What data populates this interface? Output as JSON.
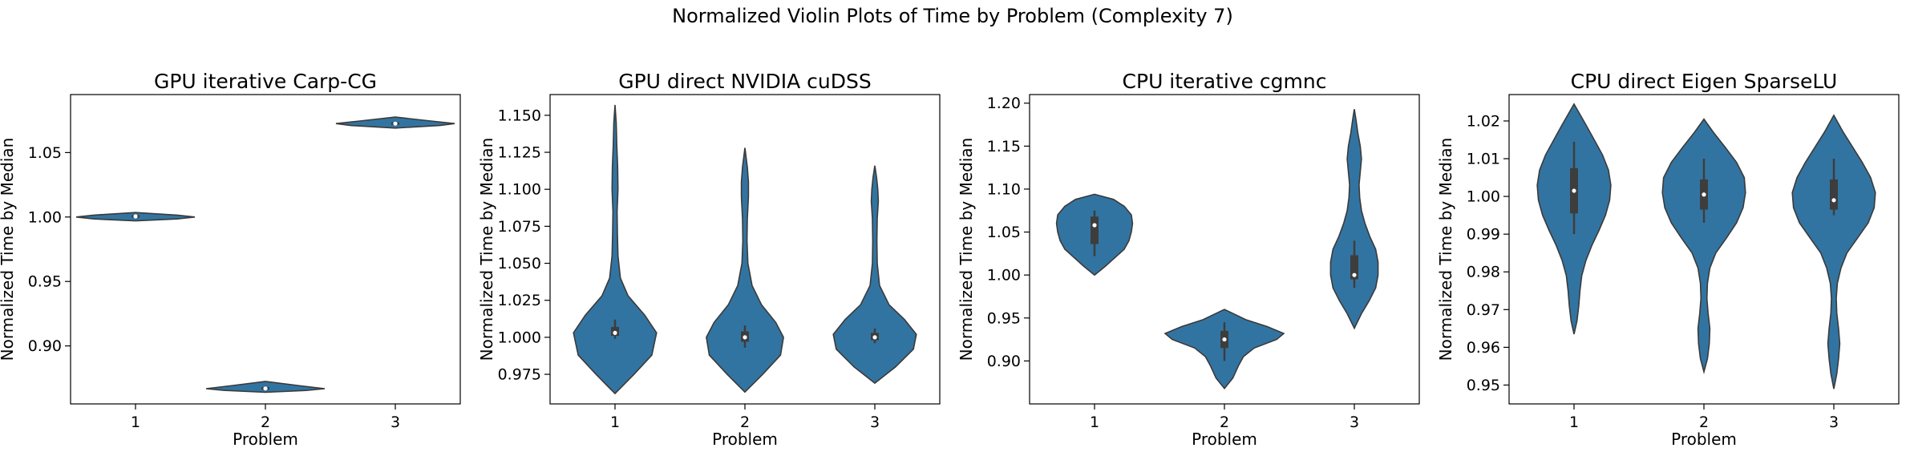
{
  "figure": {
    "title": "Normalized Violin Plots of Time by Problem (Complexity 7)",
    "violin_color": "#3274a1"
  },
  "chart_data": [
    {
      "type": "violin",
      "title": "GPU iterative Carp-CG",
      "xlabel": "Problem",
      "ylabel": "Normalized Time by Median",
      "categories": [
        "1",
        "2",
        "3"
      ],
      "ylim": [
        0.855,
        1.095
      ],
      "yticks": [
        0.9,
        0.95,
        1.0,
        1.05
      ],
      "ytick_labels": [
        "0.90",
        "0.95",
        "1.00",
        "1.05"
      ],
      "violins": [
        {
          "category": "1",
          "median": 1.0005,
          "q1": 0.9995,
          "q3": 1.0015,
          "whisker_low": 0.999,
          "whisker_high": 1.002,
          "profile": [
            [
              0.997,
              0
            ],
            [
              0.9985,
              0.7
            ],
            [
              1.0,
              1.0
            ],
            [
              1.0015,
              0.7
            ],
            [
              1.0035,
              0
            ]
          ]
        },
        {
          "category": "2",
          "median": 0.867,
          "q1": 0.8665,
          "q3": 0.868,
          "whisker_low": 0.866,
          "whisker_high": 0.869,
          "profile": [
            [
              0.864,
              0
            ],
            [
              0.8655,
              0.7
            ],
            [
              0.8668,
              1.0
            ],
            [
              0.869,
              0.6
            ],
            [
              0.8725,
              0
            ]
          ]
        },
        {
          "category": "3",
          "median": 1.0725,
          "q1": 1.0715,
          "q3": 1.0735,
          "whisker_low": 1.071,
          "whisker_high": 1.0745,
          "profile": [
            [
              1.069,
              0
            ],
            [
              1.071,
              0.75
            ],
            [
              1.0725,
              1.0
            ],
            [
              1.0745,
              0.6
            ],
            [
              1.0775,
              0
            ]
          ]
        }
      ]
    },
    {
      "type": "violin",
      "title": "GPU direct NVIDIA cuDSS",
      "xlabel": "Problem",
      "ylabel": "Normalized Time by Median",
      "categories": [
        "1",
        "2",
        "3"
      ],
      "ylim": [
        0.955,
        1.164
      ],
      "yticks": [
        0.975,
        1.0,
        1.025,
        1.05,
        1.075,
        1.1,
        1.125,
        1.15
      ],
      "ytick_labels": [
        "0.975",
        "1.000",
        "1.025",
        "1.050",
        "1.075",
        "1.100",
        "1.125",
        "1.150"
      ],
      "violins": [
        {
          "category": "1",
          "median": 1.003,
          "q1": 1.001,
          "q3": 1.007,
          "whisker_low": 0.999,
          "whisker_high": 1.012,
          "profile": [
            [
              0.962,
              0
            ],
            [
              0.975,
              0.32
            ],
            [
              0.988,
              0.62
            ],
            [
              1.003,
              0.7
            ],
            [
              1.015,
              0.5
            ],
            [
              1.028,
              0.22
            ],
            [
              1.04,
              0.09
            ],
            [
              1.055,
              0.05
            ],
            [
              1.07,
              0.04
            ],
            [
              1.085,
              0.035
            ],
            [
              1.1,
              0.05
            ],
            [
              1.115,
              0.045
            ],
            [
              1.13,
              0.03
            ],
            [
              1.145,
              0.02
            ],
            [
              1.157,
              0
            ]
          ]
        },
        {
          "category": "2",
          "median": 1.0,
          "q1": 0.997,
          "q3": 1.004,
          "whisker_low": 0.993,
          "whisker_high": 1.008,
          "profile": [
            [
              0.963,
              0
            ],
            [
              0.975,
              0.3
            ],
            [
              0.988,
              0.6
            ],
            [
              1.0,
              0.65
            ],
            [
              1.01,
              0.52
            ],
            [
              1.022,
              0.28
            ],
            [
              1.035,
              0.12
            ],
            [
              1.05,
              0.05
            ],
            [
              1.065,
              0.035
            ],
            [
              1.08,
              0.04
            ],
            [
              1.095,
              0.06
            ],
            [
              1.105,
              0.06
            ],
            [
              1.115,
              0.04
            ],
            [
              1.128,
              0
            ]
          ]
        },
        {
          "category": "3",
          "median": 1.0,
          "q1": 0.998,
          "q3": 1.003,
          "whisker_low": 0.996,
          "whisker_high": 1.006,
          "profile": [
            [
              0.969,
              0
            ],
            [
              0.98,
              0.35
            ],
            [
              0.992,
              0.65
            ],
            [
              1.002,
              0.7
            ],
            [
              1.012,
              0.5
            ],
            [
              1.022,
              0.24
            ],
            [
              1.035,
              0.08
            ],
            [
              1.05,
              0.04
            ],
            [
              1.065,
              0.035
            ],
            [
              1.08,
              0.04
            ],
            [
              1.092,
              0.06
            ],
            [
              1.1,
              0.05
            ],
            [
              1.108,
              0.03
            ],
            [
              1.116,
              0
            ]
          ]
        }
      ]
    },
    {
      "type": "violin",
      "title": "CPU iterative cgmnc",
      "xlabel": "Problem",
      "ylabel": "Normalized Time by Median",
      "categories": [
        "1",
        "2",
        "3"
      ],
      "ylim": [
        0.85,
        1.21
      ],
      "yticks": [
        0.9,
        0.95,
        1.0,
        1.05,
        1.1,
        1.15,
        1.2
      ],
      "ytick_labels": [
        "0.90",
        "0.95",
        "1.00",
        "1.05",
        "1.10",
        "1.15",
        "1.20"
      ],
      "violins": [
        {
          "category": "1",
          "median": 1.058,
          "q1": 1.036,
          "q3": 1.068,
          "whisker_low": 1.022,
          "whisker_high": 1.075,
          "profile": [
            [
              1.0,
              0
            ],
            [
              1.01,
              0.18
            ],
            [
              1.02,
              0.34
            ],
            [
              1.03,
              0.5
            ],
            [
              1.04,
              0.58
            ],
            [
              1.05,
              0.62
            ],
            [
              1.06,
              0.64
            ],
            [
              1.07,
              0.62
            ],
            [
              1.08,
              0.5
            ],
            [
              1.088,
              0.32
            ],
            [
              1.094,
              0
            ]
          ]
        },
        {
          "category": "2",
          "median": 0.925,
          "q1": 0.915,
          "q3": 0.935,
          "whisker_low": 0.9,
          "whisker_high": 0.945,
          "profile": [
            [
              0.868,
              0
            ],
            [
              0.88,
              0.14
            ],
            [
              0.895,
              0.24
            ],
            [
              0.905,
              0.32
            ],
            [
              0.915,
              0.5
            ],
            [
              0.925,
              0.88
            ],
            [
              0.932,
              1.0
            ],
            [
              0.94,
              0.72
            ],
            [
              0.948,
              0.36
            ],
            [
              0.956,
              0.12
            ],
            [
              0.96,
              0
            ]
          ]
        },
        {
          "category": "3",
          "median": 1.0,
          "q1": 0.995,
          "q3": 1.023,
          "whisker_low": 0.985,
          "whisker_high": 1.04,
          "profile": [
            [
              0.938,
              0
            ],
            [
              0.955,
              0.12
            ],
            [
              0.97,
              0.25
            ],
            [
              0.985,
              0.36
            ],
            [
              1.0,
              0.4
            ],
            [
              1.015,
              0.4
            ],
            [
              1.03,
              0.36
            ],
            [
              1.045,
              0.26
            ],
            [
              1.06,
              0.18
            ],
            [
              1.075,
              0.12
            ],
            [
              1.09,
              0.09
            ],
            [
              1.105,
              0.08
            ],
            [
              1.12,
              0.1
            ],
            [
              1.135,
              0.12
            ],
            [
              1.15,
              0.1
            ],
            [
              1.165,
              0.06
            ],
            [
              1.18,
              0.03
            ],
            [
              1.193,
              0
            ]
          ]
        }
      ]
    },
    {
      "type": "violin",
      "title": "CPU direct Eigen SparseLU",
      "xlabel": "Problem",
      "ylabel": "Normalized Time by Median",
      "categories": [
        "1",
        "2",
        "3"
      ],
      "ylim": [
        0.945,
        1.027
      ],
      "yticks": [
        0.95,
        0.96,
        0.97,
        0.98,
        0.99,
        1.0,
        1.01,
        1.02
      ],
      "ytick_labels": [
        "0.95",
        "0.96",
        "0.97",
        "0.98",
        "0.99",
        "1.00",
        "1.01",
        "1.02"
      ],
      "violins": [
        {
          "category": "1",
          "median": 1.0015,
          "q1": 0.9955,
          "q3": 1.0075,
          "whisker_low": 0.99,
          "whisker_high": 1.0145,
          "profile": [
            [
              0.9635,
              0
            ],
            [
              0.967,
              0.05
            ],
            [
              0.971,
              0.08
            ],
            [
              0.975,
              0.1
            ],
            [
              0.979,
              0.13
            ],
            [
              0.983,
              0.2
            ],
            [
              0.987,
              0.3
            ],
            [
              0.991,
              0.42
            ],
            [
              0.995,
              0.53
            ],
            [
              0.999,
              0.6
            ],
            [
              1.003,
              0.62
            ],
            [
              1.007,
              0.58
            ],
            [
              1.011,
              0.48
            ],
            [
              1.015,
              0.34
            ],
            [
              1.019,
              0.2
            ],
            [
              1.022,
              0.09
            ],
            [
              1.0245,
              0
            ]
          ]
        },
        {
          "category": "2",
          "median": 1.0005,
          "q1": 0.9965,
          "q3": 1.0045,
          "whisker_low": 0.993,
          "whisker_high": 1.01,
          "profile": [
            [
              0.9535,
              0
            ],
            [
              0.957,
              0.06
            ],
            [
              0.961,
              0.09
            ],
            [
              0.965,
              0.1
            ],
            [
              0.969,
              0.07
            ],
            [
              0.973,
              0.05
            ],
            [
              0.977,
              0.06
            ],
            [
              0.981,
              0.1
            ],
            [
              0.985,
              0.2
            ],
            [
              0.989,
              0.38
            ],
            [
              0.993,
              0.55
            ],
            [
              0.997,
              0.66
            ],
            [
              1.001,
              0.7
            ],
            [
              1.005,
              0.68
            ],
            [
              1.009,
              0.55
            ],
            [
              1.013,
              0.36
            ],
            [
              1.017,
              0.16
            ],
            [
              1.0205,
              0
            ]
          ]
        },
        {
          "category": "3",
          "median": 0.999,
          "q1": 0.9965,
          "q3": 1.0045,
          "whisker_low": 0.995,
          "whisker_high": 1.01,
          "profile": [
            [
              0.949,
              0
            ],
            [
              0.953,
              0.05
            ],
            [
              0.957,
              0.08
            ],
            [
              0.961,
              0.1
            ],
            [
              0.965,
              0.08
            ],
            [
              0.969,
              0.05
            ],
            [
              0.973,
              0.04
            ],
            [
              0.977,
              0.06
            ],
            [
              0.981,
              0.12
            ],
            [
              0.985,
              0.22
            ],
            [
              0.989,
              0.4
            ],
            [
              0.993,
              0.58
            ],
            [
              0.997,
              0.68
            ],
            [
              1.001,
              0.7
            ],
            [
              1.005,
              0.62
            ],
            [
              1.009,
              0.48
            ],
            [
              1.013,
              0.32
            ],
            [
              1.017,
              0.16
            ],
            [
              1.0215,
              0
            ]
          ]
        }
      ]
    }
  ]
}
